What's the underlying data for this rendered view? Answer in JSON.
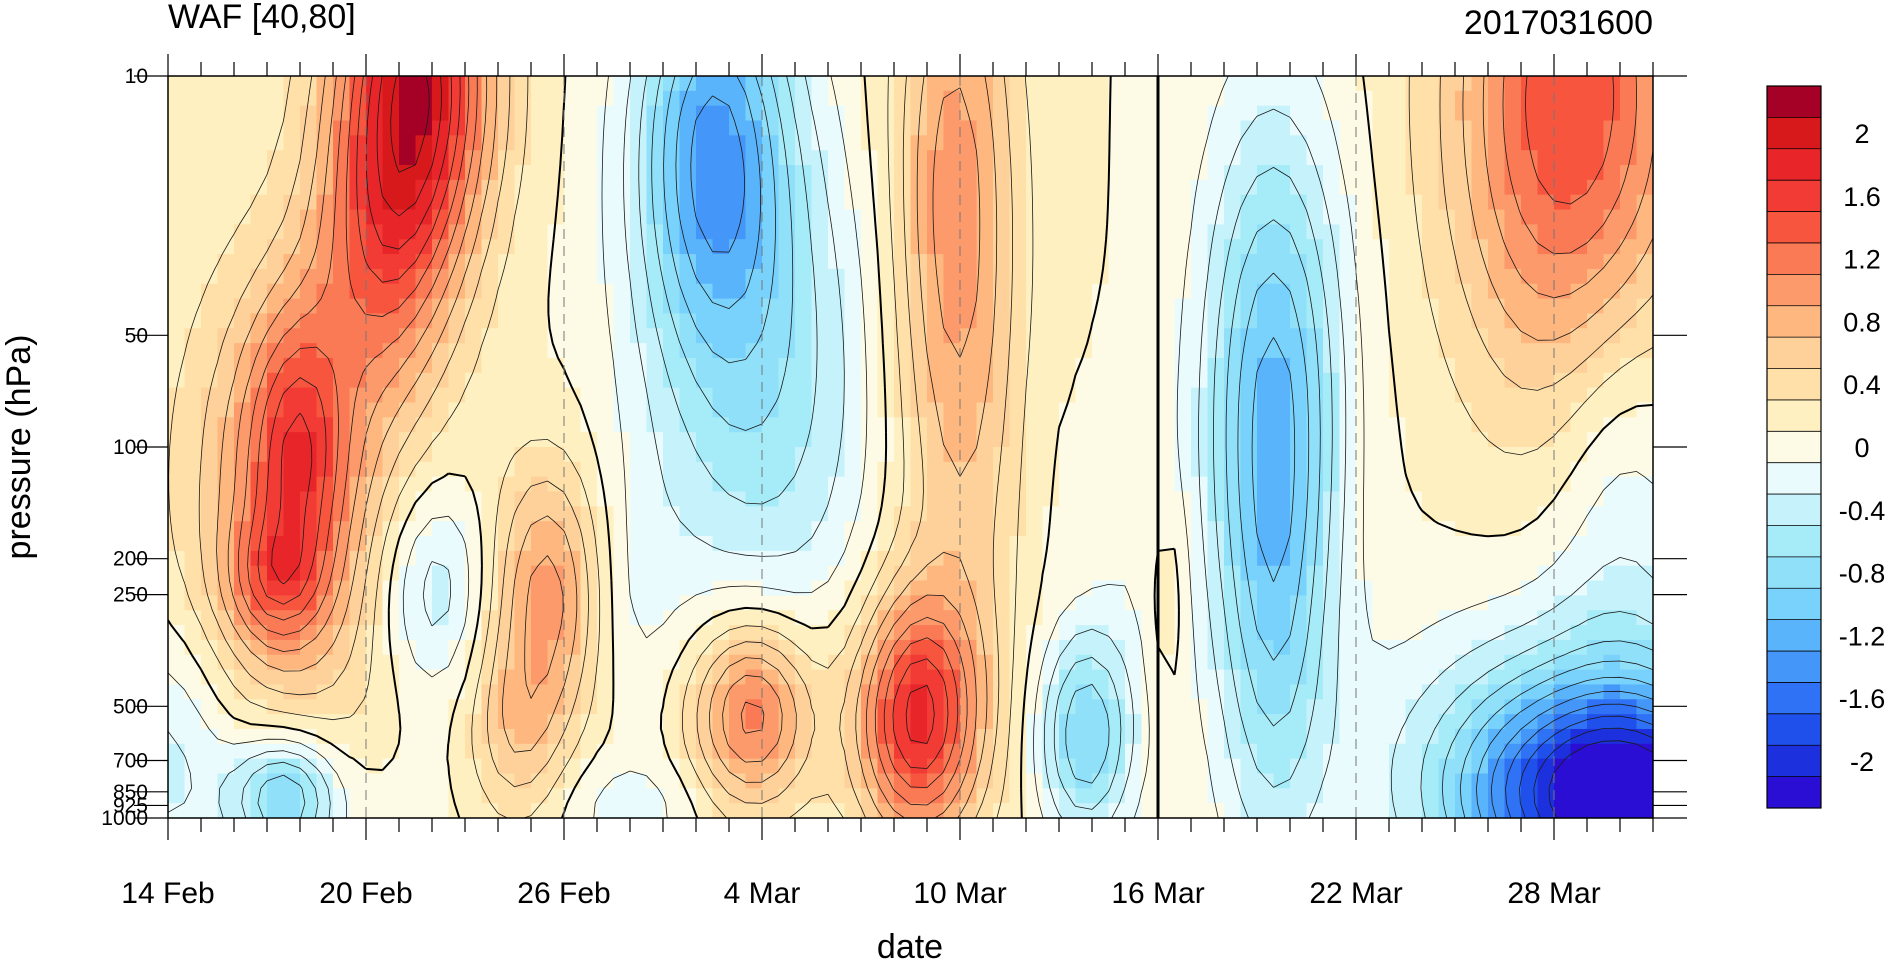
{
  "chart_data": {
    "type": "heatmap",
    "title_left": "WAF [40,80]",
    "title_right": "2017031600",
    "xlabel": "date",
    "ylabel": "pressure (hPa)",
    "x_tick_labels": [
      "14 Feb",
      "20 Feb",
      "26 Feb",
      "4 Mar",
      "10 Mar",
      "16 Mar",
      "22 Mar",
      "28 Mar"
    ],
    "x_range_days": [
      0,
      45
    ],
    "x_labeled_tick_days": [
      0,
      6,
      12,
      18,
      24,
      30,
      36,
      42
    ],
    "y_tick_labels": [
      "10",
      "50",
      "100",
      "200",
      "250",
      "500",
      "700",
      "850",
      "925",
      "1000"
    ],
    "y_tick_values": [
      10,
      50,
      100,
      200,
      250,
      500,
      700,
      850,
      925,
      1000
    ],
    "y_range": [
      1000,
      10
    ],
    "y_scale": "log",
    "y_inverted": true,
    "analysis_time_line": "16 Mar",
    "colorbar": {
      "labels": [
        "2",
        "1.6",
        "1.2",
        "0.8",
        "0.4",
        "0",
        "-0.4",
        "-0.8",
        "-1.2",
        "-1.6",
        "-2"
      ],
      "label_values": [
        2,
        1.6,
        1.2,
        0.8,
        0.4,
        0,
        -0.4,
        -0.8,
        -1.2,
        -1.6,
        -2
      ],
      "levels": [
        2.2,
        2.0,
        1.8,
        1.6,
        1.4,
        1.2,
        1.0,
        0.8,
        0.6,
        0.4,
        0.2,
        0,
        -0.2,
        -0.4,
        -0.6,
        -0.8,
        -1.0,
        -1.2,
        -1.4,
        -1.6,
        -1.8,
        -2.0,
        -2.2
      ],
      "colors": [
        "#a50026",
        "#d7191c",
        "#e8262a",
        "#f23b35",
        "#f8553f",
        "#fb7a56",
        "#fc9a6c",
        "#fdb77f",
        "#fed09a",
        "#fee0a8",
        "#fef0c0",
        "#fdfbe6",
        "#e9fbfd",
        "#c6f3fb",
        "#a6ebf8",
        "#90e0fa",
        "#78d2fb",
        "#5ab4fc",
        "#4596f9",
        "#2f72f5",
        "#2050ec",
        "#1d30de",
        "#2b0ed3"
      ]
    },
    "blobs": [
      {
        "x": 0,
        "p": 700,
        "v": -0.5,
        "sx": 1.5,
        "sy": 0.25
      },
      {
        "x": 3.8,
        "p": 140,
        "v": 0.9,
        "sx": 2.2,
        "sy": 0.45
      },
      {
        "x": 3.9,
        "p": 100,
        "v": 0.8,
        "sx": 1.0,
        "sy": 0.25
      },
      {
        "x": 3.2,
        "p": 230,
        "v": 0.6,
        "sx": 1.0,
        "sy": 0.12
      },
      {
        "x": 7.5,
        "p": 10,
        "v": 1.9,
        "sx": 1.6,
        "sy": 0.35
      },
      {
        "x": 6.5,
        "p": 30,
        "v": 0.8,
        "sx": 1.5,
        "sy": 0.3
      },
      {
        "x": 6.8,
        "p": 1000,
        "v": -0.1,
        "sx": 2.5,
        "sy": 0.2
      },
      {
        "x": 3.5,
        "p": 880,
        "v": -1.1,
        "sx": 1.1,
        "sy": 0.12
      },
      {
        "x": 8.0,
        "p": 240,
        "v": -0.6,
        "sx": 1.2,
        "sy": 0.2
      },
      {
        "x": 11.5,
        "p": 250,
        "v": 0.9,
        "sx": 1.2,
        "sy": 0.25
      },
      {
        "x": 10.5,
        "p": 600,
        "v": 0.5,
        "sx": 1.0,
        "sy": 0.18
      },
      {
        "x": 16.5,
        "p": 15,
        "v": -1.3,
        "sx": 1.6,
        "sy": 0.38
      },
      {
        "x": 18,
        "p": 70,
        "v": -0.7,
        "sx": 2.5,
        "sy": 0.5
      },
      {
        "x": 14,
        "p": 950,
        "v": -0.3,
        "sx": 1.5,
        "sy": 0.1
      },
      {
        "x": 14,
        "p": 250,
        "v": -0.2,
        "sx": 1.0,
        "sy": 0.25
      },
      {
        "x": 17.7,
        "p": 520,
        "v": 1.2,
        "sx": 1.3,
        "sy": 0.18
      },
      {
        "x": 22.7,
        "p": 540,
        "v": 1.6,
        "sx": 1.3,
        "sy": 0.23
      },
      {
        "x": 23.8,
        "p": 20,
        "v": 0.9,
        "sx": 1.3,
        "sy": 0.55
      },
      {
        "x": 24.2,
        "p": 150,
        "v": 0.3,
        "sx": 1.6,
        "sy": 0.5
      },
      {
        "x": 26.5,
        "p": 130,
        "v": -0.1,
        "sx": 0.8,
        "sy": 0.3
      },
      {
        "x": 27.8,
        "p": 600,
        "v": -1.0,
        "sx": 1.0,
        "sy": 0.2
      },
      {
        "x": 29.5,
        "p": 200,
        "v": -0.15,
        "sx": 1.2,
        "sy": 0.3
      },
      {
        "x": 30.3,
        "p": 250,
        "v": 0.3,
        "sx": 0.4,
        "sy": 0.2
      },
      {
        "x": 33.5,
        "p": 60,
        "v": -1.0,
        "sx": 1.5,
        "sy": 0.5
      },
      {
        "x": 33.5,
        "p": 300,
        "v": -0.7,
        "sx": 1.2,
        "sy": 0.5
      },
      {
        "x": 42.5,
        "p": 12,
        "v": 1.4,
        "sx": 2.5,
        "sy": 0.55
      },
      {
        "x": 44,
        "p": 900,
        "v": -1.9,
        "sx": 3.0,
        "sy": 0.2
      },
      {
        "x": 43,
        "p": 700,
        "v": -0.8,
        "sx": 4.0,
        "sy": 0.3
      },
      {
        "x": 44,
        "p": 120,
        "v": -0.4,
        "sx": 1.5,
        "sy": 0.4
      }
    ]
  }
}
